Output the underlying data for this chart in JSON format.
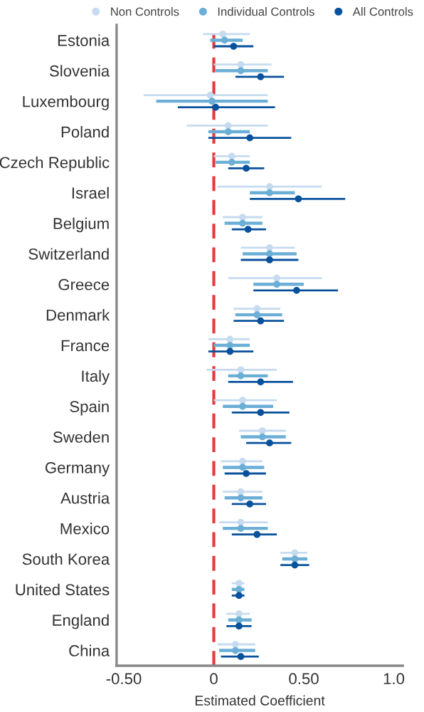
{
  "chart_data": {
    "type": "scatter",
    "orientation": "horizontal",
    "xlabel": "Estimated Coefficient",
    "categories": [
      "Estonia",
      "Slovenia",
      "Luxembourg",
      "Poland",
      "Czech Republic",
      "Israel",
      "Belgium",
      "Switzerland",
      "Greece",
      "Denmark",
      "France",
      "Italy",
      "Spain",
      "Sweden",
      "Germany",
      "Austria",
      "Mexico",
      "South Korea",
      "United States",
      "England",
      "China"
    ],
    "series": [
      {
        "name": "Non Controls",
        "color": "#c6dbef",
        "values": [
          0.05,
          0.15,
          -0.02,
          0.08,
          0.1,
          0.31,
          0.16,
          0.31,
          0.35,
          0.24,
          0.09,
          0.15,
          0.16,
          0.27,
          0.16,
          0.15,
          0.15,
          0.45,
          0.14,
          0.14,
          0.12
        ],
        "errors": [
          [
            -0.06,
            0.2
          ],
          [
            0.0,
            0.32
          ],
          [
            -0.39,
            0.3
          ],
          [
            -0.15,
            0.3
          ],
          [
            0.0,
            0.2
          ],
          [
            0.02,
            0.6
          ],
          [
            0.05,
            0.27
          ],
          [
            0.15,
            0.45
          ],
          [
            0.08,
            0.6
          ],
          [
            0.11,
            0.37
          ],
          [
            -0.03,
            0.2
          ],
          [
            -0.04,
            0.35
          ],
          [
            0.0,
            0.35
          ],
          [
            0.14,
            0.4
          ],
          [
            0.04,
            0.27
          ],
          [
            0.05,
            0.27
          ],
          [
            0.03,
            0.3
          ],
          [
            0.37,
            0.52
          ],
          [
            0.1,
            0.17
          ],
          [
            0.07,
            0.2
          ],
          [
            0.02,
            0.23
          ]
        ]
      },
      {
        "name": "Individual Controls",
        "color": "#6baed6",
        "values": [
          0.06,
          0.15,
          -0.01,
          0.08,
          0.1,
          0.31,
          0.16,
          0.31,
          0.35,
          0.24,
          0.09,
          0.15,
          0.16,
          0.27,
          0.16,
          0.15,
          0.15,
          0.45,
          0.14,
          0.14,
          0.12
        ],
        "errors": [
          [
            -0.02,
            0.16
          ],
          [
            0.01,
            0.3
          ],
          [
            -0.32,
            0.3
          ],
          [
            -0.03,
            0.2
          ],
          [
            0.01,
            0.2
          ],
          [
            0.2,
            0.45
          ],
          [
            0.06,
            0.27
          ],
          [
            0.16,
            0.46
          ],
          [
            0.22,
            0.5
          ],
          [
            0.12,
            0.38
          ],
          [
            0.0,
            0.2
          ],
          [
            0.08,
            0.3
          ],
          [
            0.05,
            0.33
          ],
          [
            0.15,
            0.4
          ],
          [
            0.05,
            0.28
          ],
          [
            0.06,
            0.27
          ],
          [
            0.05,
            0.3
          ],
          [
            0.38,
            0.52
          ],
          [
            0.1,
            0.17
          ],
          [
            0.08,
            0.21
          ],
          [
            0.03,
            0.23
          ]
        ]
      },
      {
        "name": "All Controls",
        "color": "#08519c",
        "values": [
          0.11,
          0.26,
          0.01,
          0.2,
          0.18,
          0.47,
          0.19,
          0.31,
          0.46,
          0.26,
          0.09,
          0.26,
          0.26,
          0.31,
          0.18,
          0.2,
          0.24,
          0.45,
          0.14,
          0.14,
          0.15
        ],
        "errors": [
          [
            0.0,
            0.22
          ],
          [
            0.12,
            0.39
          ],
          [
            -0.2,
            0.34
          ],
          [
            -0.03,
            0.43
          ],
          [
            0.08,
            0.28
          ],
          [
            0.2,
            0.73
          ],
          [
            0.1,
            0.29
          ],
          [
            0.15,
            0.47
          ],
          [
            0.22,
            0.69
          ],
          [
            0.11,
            0.39
          ],
          [
            -0.03,
            0.22
          ],
          [
            0.08,
            0.44
          ],
          [
            0.1,
            0.42
          ],
          [
            0.18,
            0.43
          ],
          [
            0.06,
            0.29
          ],
          [
            0.1,
            0.29
          ],
          [
            0.1,
            0.35
          ],
          [
            0.37,
            0.53
          ],
          [
            0.1,
            0.17
          ],
          [
            0.07,
            0.21
          ],
          [
            0.04,
            0.25
          ]
        ]
      }
    ],
    "xlim": [
      -0.54,
      1.05
    ],
    "xticks": [
      {
        "value": -0.5,
        "label": "-0.50"
      },
      0,
      {
        "value": 0.5,
        "label": "0.50"
      },
      {
        "value": 1.0,
        "label": "1.0"
      }
    ],
    "ref_lines": [
      {
        "axis": "x",
        "value": 0,
        "color": "#e8383d",
        "line_style": "dashed"
      }
    ],
    "legend": "top",
    "marker": "circle"
  }
}
